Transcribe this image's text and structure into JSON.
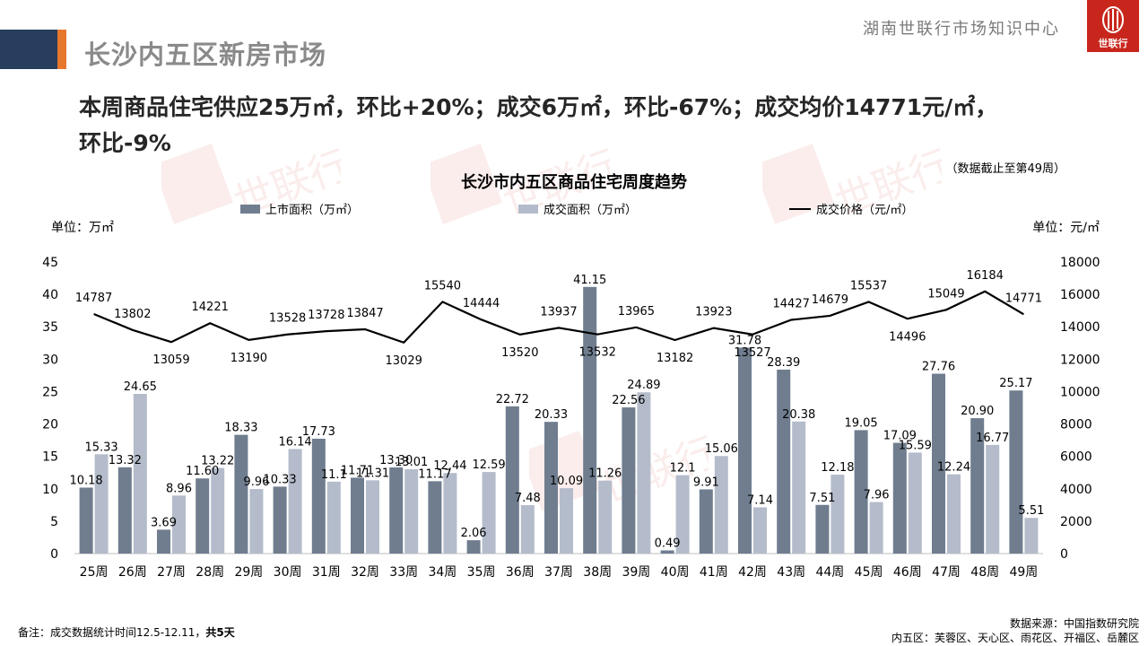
{
  "header": {
    "title": "长沙内五区新房市场",
    "org": "湖南世联行市场知识中心",
    "logo_text": "世联行"
  },
  "headline": {
    "line1": "本周商品住宅供应25万㎡，环比+20%；成交6万㎡，环比-67%；成交均价14771元/㎡，",
    "line2": "环比-9%"
  },
  "notes": {
    "data_cutoff": "（数据截止至第49周）",
    "footnote_left_prefix": "备注：成交数据统计时间12.5-12.11，",
    "footnote_left_bold": "共5天",
    "source": "数据来源：中国指数研究院",
    "districts": "内五区：芙蓉区、天心区、雨花区、开福区、岳麓区"
  },
  "watermark_text": "世联行",
  "colors": {
    "supply_bar": "#6f7d8f",
    "deal_bar": "#b4bccb",
    "price_line": "#000000",
    "title_bar": "#273e5e",
    "accent": "#e8772e",
    "logo": "#c8261c"
  },
  "chart_data": {
    "type": "bar",
    "title": "长沙市内五区商品住宅周度趋势",
    "ylabel_left": "单位：万㎡",
    "ylabel_right": "单位：元/㎡",
    "ylim_left": [
      0,
      45
    ],
    "ylim_right": [
      0,
      18000
    ],
    "yticks_left": [
      0,
      5,
      10,
      15,
      20,
      25,
      30,
      35,
      40,
      45
    ],
    "yticks_right": [
      0,
      2000,
      4000,
      6000,
      8000,
      10000,
      12000,
      14000,
      16000,
      18000
    ],
    "legend_position": "top",
    "grid": false,
    "categories": [
      "25周",
      "26周",
      "27周",
      "28周",
      "29周",
      "30周",
      "31周",
      "32周",
      "33周",
      "34周",
      "35周",
      "36周",
      "37周",
      "38周",
      "39周",
      "40周",
      "41周",
      "42周",
      "43周",
      "44周",
      "45周",
      "46周",
      "47周",
      "48周",
      "49周"
    ],
    "series": [
      {
        "name": "上市面积（万㎡）",
        "type": "bar",
        "axis": "left",
        "values": [
          10.18,
          13.32,
          3.69,
          11.6,
          18.33,
          10.33,
          17.73,
          11.71,
          13.3,
          11.17,
          2.06,
          22.72,
          20.33,
          41.15,
          22.56,
          0.49,
          9.91,
          31.78,
          28.39,
          7.51,
          19.05,
          17.09,
          27.76,
          20.9,
          25.17
        ],
        "labels": [
          "10.18",
          "13.32",
          "3.69",
          "11.60",
          "18.33",
          "10.33",
          "17.73",
          "11.71",
          "13.30",
          "11.17",
          "2.06",
          "22.72",
          "20.33",
          "41.15",
          "22.56",
          "0.49",
          "9.91",
          "31.78",
          "28.39",
          "7.51",
          "19.05",
          "17.09",
          "27.76",
          "20.90",
          "25.17"
        ]
      },
      {
        "name": "成交面积（万㎡）",
        "type": "bar",
        "axis": "left",
        "values": [
          15.33,
          24.65,
          8.96,
          13.22,
          9.96,
          16.14,
          11.1,
          11.31,
          13.01,
          12.44,
          12.59,
          7.48,
          10.09,
          11.26,
          24.89,
          12.1,
          15.06,
          7.14,
          20.38,
          12.18,
          7.96,
          15.59,
          12.24,
          16.77,
          5.51
        ],
        "labels": [
          "15.33",
          "24.65",
          "8.96",
          "13.22",
          "9.96",
          "16.14",
          "11.1",
          "11.31",
          "13.01",
          "12.44",
          "12.59",
          "7.48",
          "10.09",
          "11.26",
          "24.89",
          "12.1",
          "15.06",
          "7.14",
          "20.38",
          "12.18",
          "7.96",
          "15.59",
          "12.24",
          "16.77",
          "5.51"
        ]
      },
      {
        "name": "成交价格（元/㎡）",
        "type": "line",
        "axis": "right",
        "values": [
          14787,
          13802,
          13059,
          14221,
          13190,
          13528,
          13728,
          13847,
          13029,
          15540,
          14444,
          13520,
          13937,
          13532,
          13965,
          13182,
          13923,
          13527,
          14427,
          14679,
          15537,
          14496,
          15049,
          16184,
          14771
        ]
      }
    ]
  }
}
